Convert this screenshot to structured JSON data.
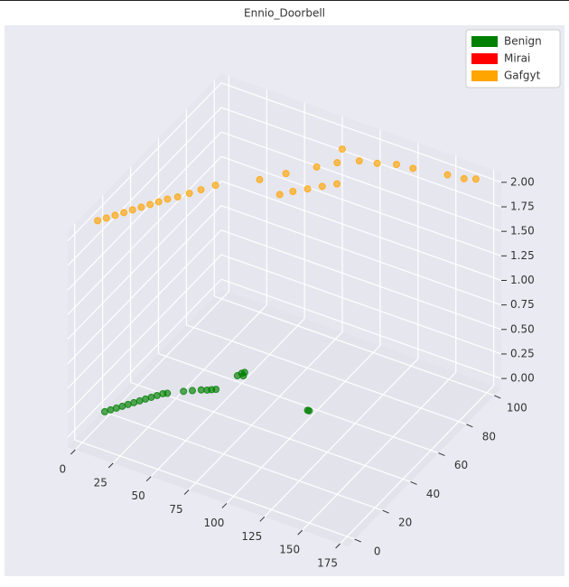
{
  "chart_data": {
    "type": "scatter3d",
    "title": "Ennio_Doorbell",
    "xlim": [
      -5,
      180
    ],
    "ylim": [
      -5,
      105
    ],
    "zlim": [
      -0.1,
      2.1
    ],
    "xticks": [
      0,
      25,
      50,
      75,
      100,
      125,
      150,
      175
    ],
    "yticks": [
      0,
      20,
      40,
      60,
      80,
      100
    ],
    "zticks": [
      {
        "value": 0,
        "label": "0.00"
      },
      {
        "value": 0.25,
        "label": "0.25"
      },
      {
        "value": 0.5,
        "label": "0.50"
      },
      {
        "value": 0.75,
        "label": "0.75"
      },
      {
        "value": 1,
        "label": "1.00"
      },
      {
        "value": 1.25,
        "label": "1.25"
      },
      {
        "value": 1.5,
        "label": "1.50"
      },
      {
        "value": 1.75,
        "label": "1.75"
      },
      {
        "value": 2,
        "label": "2.00"
      }
    ],
    "grid": true,
    "legend": "upper right",
    "series": [
      {
        "name": "Benign",
        "color": "#008000",
        "x": [
          1,
          3,
          5,
          7,
          9,
          11,
          13,
          15,
          17,
          19,
          21,
          23,
          30,
          34,
          38,
          41,
          43,
          45,
          49,
          50,
          51,
          52,
          100,
          101
        ],
        "y": [
          15,
          17,
          19,
          21,
          23,
          25,
          27,
          29,
          31,
          33,
          35,
          36,
          40,
          42,
          44,
          45,
          46,
          47,
          58,
          60,
          61,
          59,
          53,
          53
        ],
        "z": [
          0,
          0,
          0,
          0,
          0,
          0,
          0,
          0,
          0,
          0,
          0,
          0,
          0,
          0,
          0,
          0,
          0,
          0,
          0,
          0,
          0,
          0,
          0,
          0
        ]
      },
      {
        "name": "Mirai",
        "color": "#ff0000",
        "x": [],
        "y": [],
        "z": []
      },
      {
        "name": "Gafgyt",
        "color": "#ffa500",
        "x": [
          0,
          3,
          6,
          9,
          12,
          15,
          18,
          21,
          24,
          28,
          32,
          36,
          41,
          77,
          82,
          88,
          94,
          100,
          60,
          70,
          82,
          90,
          86,
          100,
          110,
          120,
          130,
          150,
          160,
          166
        ],
        "y": [
          11,
          14,
          17,
          20,
          23,
          26,
          29,
          32,
          35,
          38,
          42,
          46,
          51,
          58,
          62,
          66,
          70,
          74,
          62,
          70,
          79,
          85,
          93,
          90,
          92,
          95,
          96,
          99,
          100,
          102
        ],
        "z": [
          2,
          2,
          2,
          2,
          2,
          2,
          2,
          2,
          2,
          2,
          2,
          2,
          2,
          2,
          2,
          2,
          2,
          2,
          2,
          2,
          2,
          2,
          2,
          2,
          2,
          2,
          2,
          2,
          2,
          2
        ]
      }
    ]
  }
}
